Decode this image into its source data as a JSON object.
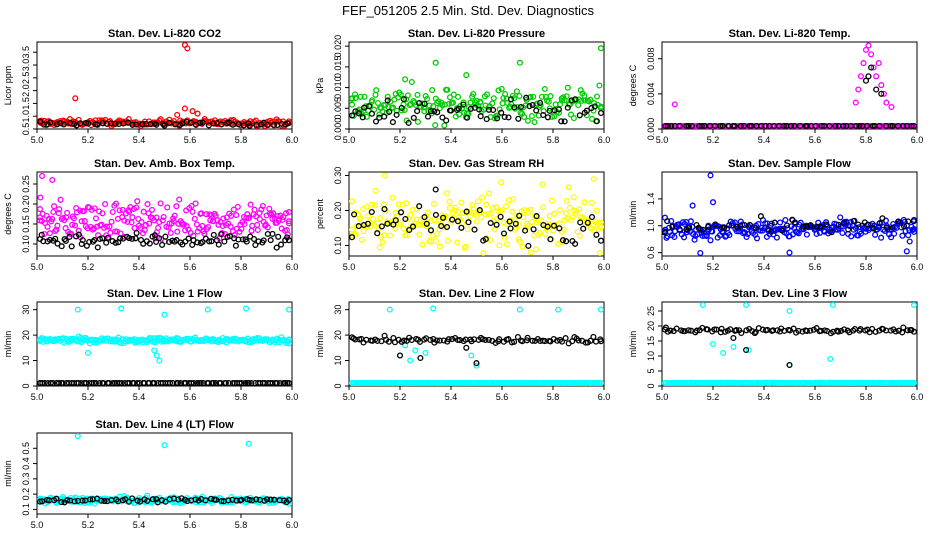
{
  "figure_title": "FEF_051205  2.5 Min. Std. Dev. Diagnostics",
  "colors": {
    "red": "#ff0000",
    "green": "#00cc00",
    "magenta": "#ff00ff",
    "yellow": "#ffff00",
    "blue": "#0000ff",
    "cyan": "#00ffff",
    "black": "#000000"
  },
  "chart_data": [
    {
      "type": "scatter",
      "title": "Stan. Dev. Li-820 CO2",
      "ylabel": "Licor ppm",
      "xlim": [
        5.0,
        6.0
      ],
      "ylim": [
        0.5,
        3.9
      ],
      "x_ticks": [
        "5.0",
        "5.2",
        "5.4",
        "5.6",
        "5.8",
        "6.0"
      ],
      "y_ticks": [
        "0.5",
        "1.0",
        "1.5",
        "2.0",
        "2.5",
        "3.0",
        "3.5"
      ],
      "series": [
        {
          "name": "primary",
          "color": "red",
          "base": 0.75,
          "noise": 0.12,
          "count": 180,
          "outliers": [
            [
              5.15,
              1.7
            ],
            [
              5.58,
              3.85
            ],
            [
              5.59,
              3.65
            ],
            [
              5.58,
              1.3
            ],
            [
              5.61,
              1.2
            ],
            [
              5.63,
              1.1
            ],
            [
              5.55,
              1.05
            ]
          ]
        },
        {
          "name": "secondary",
          "color": "black",
          "base": 0.7,
          "noise": 0.08,
          "count": 60,
          "outliers": []
        }
      ]
    },
    {
      "type": "scatter",
      "title": "Stan. Dev. Li-820 Pressure",
      "ylabel": "kPa",
      "xlim": [
        5.0,
        6.0
      ],
      "ylim": [
        0.0,
        0.021
      ],
      "x_ticks": [
        "5.0",
        "5.2",
        "5.4",
        "5.6",
        "5.8",
        "6.0"
      ],
      "y_ticks": [
        "0.000",
        "0.005",
        "0.010",
        "0.015",
        "0.020"
      ],
      "series": [
        {
          "name": "primary",
          "color": "green",
          "base": 0.006,
          "noise": 0.004,
          "count": 200,
          "outliers": [
            [
              5.34,
              0.016
            ],
            [
              5.67,
              0.016
            ],
            [
              6.0,
              0.0195
            ],
            [
              5.46,
              0.013
            ],
            [
              5.22,
              0.012
            ]
          ]
        },
        {
          "name": "secondary",
          "color": "black",
          "base": 0.004,
          "noise": 0.003,
          "count": 70,
          "outliers": []
        }
      ]
    },
    {
      "type": "scatter",
      "title": "Stan. Dev. Li-820 Temp.",
      "ylabel": "degrees C",
      "xlim": [
        5.0,
        6.0
      ],
      "ylim": [
        0.0,
        0.0099
      ],
      "x_ticks": [
        "5.0",
        "5.2",
        "5.4",
        "5.6",
        "5.8",
        "6.0"
      ],
      "y_ticks": [
        "0.000",
        "0.004",
        "0.008"
      ],
      "series": [
        {
          "name": "primary",
          "color": "magenta",
          "base": 0.0,
          "noise": 0.0,
          "count": 140,
          "outliers": [
            [
              5.05,
              0.0028
            ],
            [
              5.76,
              0.003
            ],
            [
              5.77,
              0.0045
            ],
            [
              5.78,
              0.006
            ],
            [
              5.79,
              0.0075
            ],
            [
              5.8,
              0.009
            ],
            [
              5.81,
              0.0095
            ],
            [
              5.82,
              0.0085
            ],
            [
              5.83,
              0.007
            ],
            [
              5.84,
              0.006
            ],
            [
              5.86,
              0.005
            ],
            [
              5.87,
              0.004
            ],
            [
              5.88,
              0.003
            ],
            [
              5.9,
              0.0025
            ],
            [
              5.85,
              0.0075
            ]
          ]
        },
        {
          "name": "secondary",
          "color": "black",
          "base": 0.0,
          "noise": 0.0,
          "count": 60,
          "outliers": [
            [
              5.8,
              0.0055
            ],
            [
              5.82,
              0.007
            ],
            [
              5.84,
              0.0045
            ],
            [
              5.86,
              0.004
            ],
            [
              5.81,
              0.006
            ]
          ]
        }
      ]
    },
    {
      "type": "scatter",
      "title": "Stan. Dev. Amb. Box Temp.",
      "ylabel": "degrees C",
      "xlim": [
        5.0,
        6.0
      ],
      "ylim": [
        0.07,
        0.28
      ],
      "x_ticks": [
        "5.0",
        "5.2",
        "5.4",
        "5.6",
        "5.8",
        "6.0"
      ],
      "y_ticks": [
        "0.10",
        "0.15",
        "0.20",
        "0.25"
      ],
      "series": [
        {
          "name": "primary",
          "color": "magenta",
          "base": 0.16,
          "noise": 0.045,
          "count": 230,
          "outliers": [
            [
              5.02,
              0.27
            ],
            [
              5.06,
              0.26
            ]
          ]
        },
        {
          "name": "secondary",
          "color": "black",
          "base": 0.11,
          "noise": 0.018,
          "count": 90,
          "outliers": []
        }
      ]
    },
    {
      "type": "scatter",
      "title": "Stan. Dev. Gas Stream RH",
      "ylabel": "percent",
      "xlim": [
        5.0,
        6.0
      ],
      "ylim": [
        0.07,
        0.31
      ],
      "x_ticks": [
        "5.0",
        "5.2",
        "5.4",
        "5.6",
        "5.8",
        "6.0"
      ],
      "y_ticks": [
        "0.10",
        "0.20",
        "0.30"
      ],
      "series": [
        {
          "name": "primary",
          "color": "yellow",
          "base": 0.17,
          "noise": 0.075,
          "count": 230,
          "outliers": [
            [
              5.14,
              0.3
            ],
            [
              5.96,
              0.29
            ]
          ]
        },
        {
          "name": "secondary",
          "color": "black",
          "base": 0.16,
          "noise": 0.05,
          "count": 60,
          "outliers": [
            [
              5.34,
              0.26
            ]
          ]
        }
      ]
    },
    {
      "type": "scatter",
      "title": "Stan. Dev. Sample Flow",
      "ylabel": "ml/min",
      "xlim": [
        5.0,
        6.0
      ],
      "ylim": [
        0.55,
        1.8
      ],
      "x_ticks": [
        "5.0",
        "5.2",
        "5.4",
        "5.6",
        "5.8",
        "6.0"
      ],
      "y_ticks": [
        "0.6",
        "1.0",
        "1.4"
      ],
      "series": [
        {
          "name": "primary",
          "color": "blue",
          "base": 0.95,
          "noise": 0.14,
          "count": 240,
          "outliers": [
            [
              5.19,
              1.75
            ],
            [
              5.2,
              1.35
            ],
            [
              5.12,
              1.3
            ],
            [
              5.5,
              0.6
            ],
            [
              5.96,
              0.62
            ],
            [
              5.15,
              0.55
            ]
          ]
        },
        {
          "name": "secondary",
          "color": "black",
          "base": 1.0,
          "noise": 0.1,
          "count": 50,
          "outliers": []
        }
      ]
    },
    {
      "type": "scatter",
      "title": "Stan. Dev. Line 1 Flow",
      "ylabel": "ml/min",
      "xlim": [
        5.0,
        6.0
      ],
      "ylim": [
        0,
        33
      ],
      "x_ticks": [
        "5.0",
        "5.2",
        "5.4",
        "5.6",
        "5.8",
        "6.0"
      ],
      "y_ticks": [
        "0",
        "10",
        "20",
        "30"
      ],
      "series": [
        {
          "name": "primary",
          "color": "cyan",
          "base": 18,
          "noise": 1.0,
          "count": 230,
          "outliers": [
            [
              5.16,
              30
            ],
            [
              5.33,
              30.5
            ],
            [
              5.5,
              28
            ],
            [
              5.67,
              30
            ],
            [
              5.82,
              30.5
            ],
            [
              6.0,
              30
            ],
            [
              5.47,
              12
            ],
            [
              5.48,
              10
            ],
            [
              5.46,
              14
            ],
            [
              5.2,
              13
            ]
          ]
        },
        {
          "name": "secondary",
          "color": "black",
          "base": 1,
          "noise": 0.1,
          "count": 100,
          "outliers": []
        }
      ]
    },
    {
      "type": "scatter",
      "title": "Stan. Dev. Line 2 Flow",
      "ylabel": "ml/min",
      "xlim": [
        5.0,
        6.0
      ],
      "ylim": [
        0,
        33
      ],
      "x_ticks": [
        "5.0",
        "5.2",
        "5.4",
        "5.6",
        "5.8",
        "6.0"
      ],
      "y_ticks": [
        "0",
        "10",
        "20",
        "30"
      ],
      "series": [
        {
          "name": "primary",
          "color": "cyan",
          "base": 1,
          "noise": 0.1,
          "count": 200,
          "outliers": [
            [
              5.16,
              30
            ],
            [
              5.33,
              30.5
            ],
            [
              5.5,
              8
            ],
            [
              5.67,
              30
            ],
            [
              5.82,
              30
            ],
            [
              6.0,
              30
            ],
            [
              5.2,
              12
            ],
            [
              5.24,
              10
            ],
            [
              5.26,
              14
            ],
            [
              5.3,
              13
            ],
            [
              5.22,
              16
            ],
            [
              5.48,
              12
            ]
          ]
        },
        {
          "name": "secondary",
          "color": "black",
          "base": 18,
          "noise": 1.2,
          "count": 90,
          "outliers": [
            [
              5.2,
              12
            ],
            [
              5.5,
              9
            ],
            [
              5.28,
              11
            ],
            [
              5.46,
              15
            ]
          ]
        }
      ]
    },
    {
      "type": "scatter",
      "title": "Stan. Dev. Line 3 Flow",
      "ylabel": "ml/min",
      "xlim": [
        5.0,
        6.0
      ],
      "ylim": [
        0,
        28
      ],
      "x_ticks": [
        "5.0",
        "5.2",
        "5.4",
        "5.6",
        "5.8",
        "6.0"
      ],
      "y_ticks": [
        "0",
        "5",
        "10",
        "15",
        "20",
        "25"
      ],
      "series": [
        {
          "name": "primary",
          "color": "cyan",
          "base": 1,
          "noise": 0.1,
          "count": 200,
          "outliers": [
            [
              5.16,
              27
            ],
            [
              5.33,
              27.5
            ],
            [
              5.5,
              25
            ],
            [
              5.67,
              27
            ],
            [
              6.0,
              27
            ],
            [
              5.2,
              14
            ],
            [
              5.24,
              11
            ],
            [
              5.28,
              13
            ],
            [
              5.34,
              12
            ],
            [
              5.66,
              9
            ],
            [
              5.5,
              7
            ]
          ]
        },
        {
          "name": "secondary",
          "color": "black",
          "base": 18.5,
          "noise": 0.8,
          "count": 90,
          "outliers": [
            [
              5.33,
              12
            ],
            [
              5.5,
              7
            ],
            [
              5.28,
              16
            ]
          ]
        }
      ]
    },
    {
      "type": "scatter",
      "title": "Stan. Dev. Line 4 (LT) Flow",
      "ylabel": "ml/min",
      "xlim": [
        5.0,
        6.0
      ],
      "ylim": [
        0.07,
        0.6
      ],
      "x_ticks": [
        "5.0",
        "5.2",
        "5.4",
        "5.6",
        "5.8",
        "6.0"
      ],
      "y_ticks": [
        "0.1",
        "0.2",
        "0.3",
        "0.4",
        "0.5"
      ],
      "series": [
        {
          "name": "primary",
          "color": "cyan",
          "base": 0.16,
          "noise": 0.02,
          "count": 230,
          "outliers": [
            [
              5.16,
              0.58
            ],
            [
              5.5,
              0.52
            ],
            [
              5.83,
              0.53
            ]
          ]
        },
        {
          "name": "secondary",
          "color": "black",
          "base": 0.16,
          "noise": 0.012,
          "count": 70,
          "outliers": []
        }
      ]
    }
  ]
}
